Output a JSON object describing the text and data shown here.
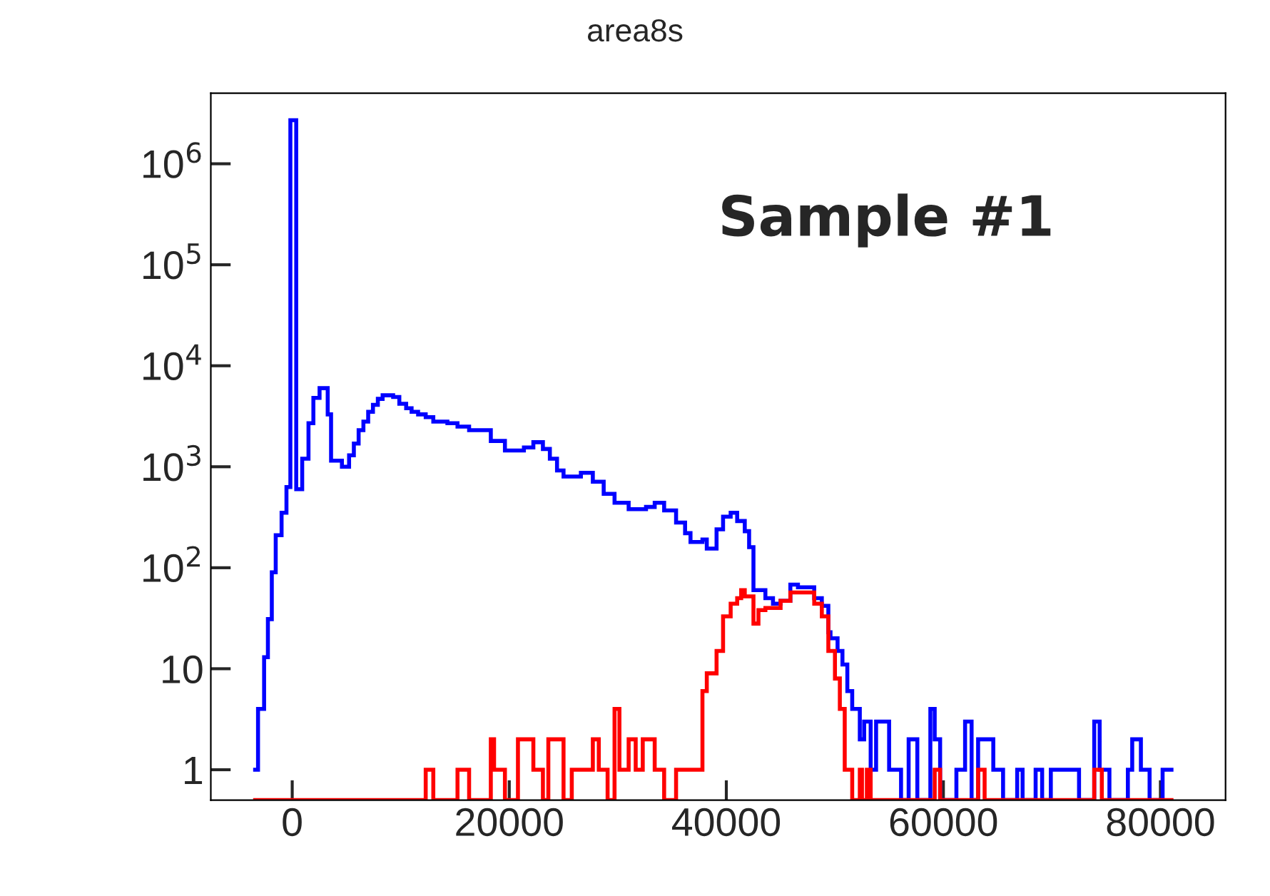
{
  "chart_data": {
    "type": "histogram",
    "title": "area8s",
    "annotations": [
      "Sample #1"
    ],
    "log": "y",
    "grid": false,
    "legend": false,
    "xlim": [
      -7500,
      86000
    ],
    "xticks": [
      0,
      20000,
      40000,
      60000,
      80000
    ],
    "ylim": [
      0.5,
      5000000
    ],
    "yticks": [
      1,
      10,
      {
        "value": 100,
        "label": "10$^{2}$"
      },
      {
        "value": 1000,
        "label": "10$^{3}$"
      },
      {
        "value": 10000,
        "label": "10$^{4}$"
      },
      {
        "value": 100000,
        "label": "10$^{5}$"
      },
      {
        "value": 1000000,
        "label": "10$^{6}$"
      }
    ],
    "bins": [
      -3600,
      -3150,
      -2590,
      -2240,
      -1880,
      -1520,
      -980,
      -530,
      -170,
      370,
      920,
      1500,
      1950,
      2520,
      3270,
      3580,
      4580,
      5240,
      5680,
      6120,
      6560,
      7000,
      7440,
      7890,
      8330,
      9300,
      9870,
      10500,
      11000,
      11600,
      12300,
      13000,
      14300,
      15230,
      16300,
      18300,
      18600,
      19600,
      20800,
      21350,
      22220,
      23100,
      23600,
      23740,
      24400,
      25000,
      25760,
      26600,
      27700,
      28250,
      28700,
      29060,
      29700,
      30150,
      31000,
      31650,
      32300,
      32600,
      33400,
      34270,
      35370,
      36200,
      36700,
      37800,
      38200,
      39100,
      39700,
      40400,
      41000,
      41370,
      41700,
      42100,
      42500,
      42960,
      43600,
      44300,
      45000,
      45900,
      46600,
      48100,
      48800,
      49400,
      49600,
      50010,
      50250,
      50460,
      50700,
      50910,
      51150,
      51600,
      52300,
      52500,
      52700,
      52950,
      53300,
      53800,
      55000,
      56100,
      56800,
      57600,
      58800,
      59200,
      59700,
      61200,
      62000,
      62600,
      63200,
      63800,
      64600,
      65500,
      66800,
      67300,
      68500,
      69100,
      69900,
      72500,
      73900,
      74400,
      74600,
      75300,
      77000,
      77400,
      78200,
      79000,
      80200,
      81200
    ],
    "series": [
      {
        "color": "#0000ff",
        "values": [
          1,
          4,
          13,
          31,
          90,
          210,
          350,
          630,
          2700000,
          600,
          1200,
          2700,
          4800,
          6000,
          3300,
          1150,
          1000,
          1300,
          1700,
          2300,
          2800,
          3500,
          4100,
          4700,
          5100,
          4900,
          4200,
          3800,
          3500,
          3300,
          3100,
          2800,
          2700,
          2500,
          2300,
          1800,
          1800,
          1450,
          1450,
          1550,
          1750,
          1500,
          1500,
          1200,
          920,
          800,
          800,
          870,
          710,
          710,
          540,
          540,
          440,
          440,
          380,
          380,
          380,
          400,
          440,
          370,
          280,
          220,
          180,
          190,
          155,
          240,
          320,
          350,
          290,
          290,
          230,
          160,
          60,
          60,
          50,
          44,
          47,
          68,
          64,
          50,
          42,
          23,
          20,
          20,
          15,
          15,
          11,
          11,
          6,
          4,
          2,
          2,
          3,
          3,
          1,
          3,
          1,
          null,
          2,
          null,
          4,
          2,
          null,
          1,
          3,
          null,
          2,
          2,
          1,
          null,
          1,
          null,
          1,
          null,
          1,
          null,
          3,
          1,
          1,
          null,
          1,
          2,
          1,
          null,
          1
        ]
      },
      {
        "color": "#ff0000",
        "values": [
          null,
          null,
          null,
          null,
          null,
          null,
          null,
          null,
          null,
          null,
          null,
          null,
          null,
          null,
          null,
          null,
          null,
          null,
          null,
          null,
          null,
          null,
          null,
          null,
          null,
          null,
          null,
          null,
          null,
          null,
          1,
          null,
          null,
          1,
          null,
          2,
          1,
          null,
          2,
          2,
          1,
          null,
          2,
          2,
          2,
          null,
          1,
          1,
          2,
          1,
          1,
          null,
          4,
          1,
          2,
          1,
          2,
          2,
          1,
          null,
          1,
          1,
          1,
          6,
          9,
          15,
          33,
          44,
          50,
          60,
          52,
          52,
          28,
          38,
          40,
          40,
          47,
          57,
          57,
          44,
          33,
          15,
          15,
          8,
          8,
          4,
          4,
          1,
          1,
          null,
          1,
          null,
          null,
          1,
          null,
          null,
          null,
          null,
          null,
          null,
          null,
          1,
          null,
          null,
          null,
          null,
          1,
          null,
          null,
          null,
          null,
          null,
          null,
          null,
          null,
          null,
          1,
          1,
          null,
          null,
          null,
          null,
          null,
          null,
          null
        ]
      }
    ]
  }
}
